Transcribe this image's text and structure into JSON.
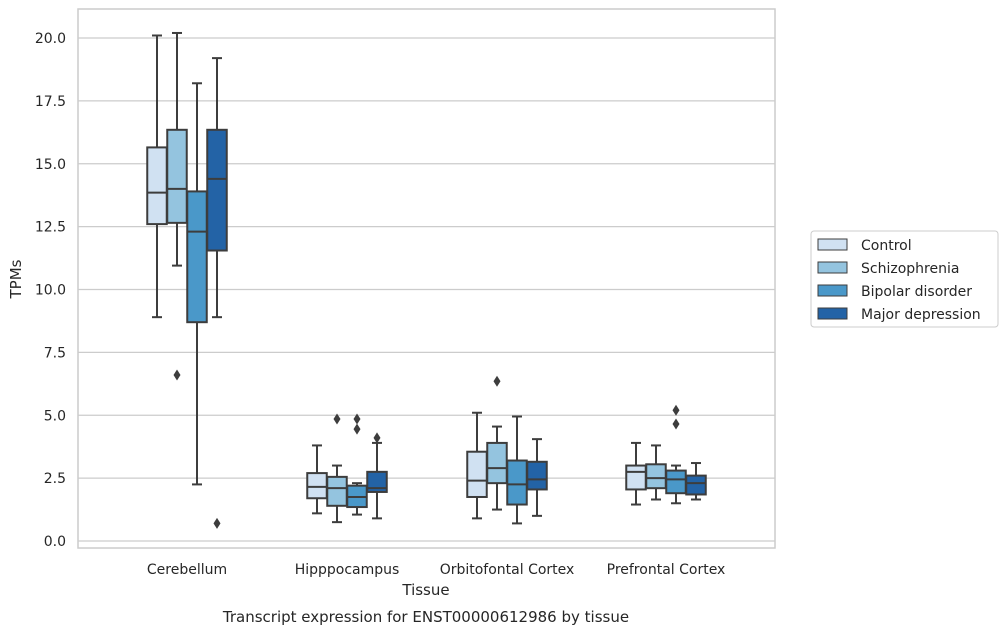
{
  "chart_data": {
    "type": "box",
    "title": "",
    "caption": "Transcript expression for ENST00000612986 by tissue",
    "xlabel": "Tissue",
    "ylabel": "TPMs",
    "ylim": [
      -0.3,
      21.2
    ],
    "yticks": [
      0.0,
      2.5,
      5.0,
      7.5,
      10.0,
      12.5,
      15.0,
      17.5,
      20.0
    ],
    "ytick_labels": [
      "0.0",
      "2.5",
      "5.0",
      "7.5",
      "10.0",
      "12.5",
      "15.0",
      "17.5",
      "20.0"
    ],
    "grid": "horizontal",
    "legend_position": "right",
    "categories": [
      "Cerebellum",
      "Hipppocampus",
      "Orbitofontal Cortex",
      "Prefrontal Cortex"
    ],
    "series": [
      {
        "name": "Control",
        "color": "#d0e1f2",
        "boxes": [
          {
            "whisker_low": 8.9,
            "q1": 12.6,
            "median": 13.85,
            "q3": 15.65,
            "whisker_high": 20.1,
            "outliers": []
          },
          {
            "whisker_low": 1.1,
            "q1": 1.7,
            "median": 2.15,
            "q3": 2.7,
            "whisker_high": 3.8,
            "outliers": []
          },
          {
            "whisker_low": 0.9,
            "q1": 1.75,
            "median": 2.4,
            "q3": 3.55,
            "whisker_high": 5.1,
            "outliers": []
          },
          {
            "whisker_low": 1.45,
            "q1": 2.05,
            "median": 2.75,
            "q3": 3.0,
            "whisker_high": 3.9,
            "outliers": []
          }
        ]
      },
      {
        "name": "Schizophrenia",
        "color": "#94c4df",
        "boxes": [
          {
            "whisker_low": 10.95,
            "q1": 12.65,
            "median": 14.0,
            "q3": 16.35,
            "whisker_high": 20.2,
            "outliers": [
              6.6
            ]
          },
          {
            "whisker_low": 0.75,
            "q1": 1.4,
            "median": 2.1,
            "q3": 2.55,
            "whisker_high": 3.0,
            "outliers": [
              4.85
            ]
          },
          {
            "whisker_low": 1.25,
            "q1": 2.3,
            "median": 2.9,
            "q3": 3.9,
            "whisker_high": 4.55,
            "outliers": [
              6.35
            ]
          },
          {
            "whisker_low": 1.65,
            "q1": 2.1,
            "median": 2.5,
            "q3": 3.05,
            "whisker_high": 3.8,
            "outliers": []
          }
        ]
      },
      {
        "name": "Bipolar disorder",
        "color": "#4a98c9",
        "boxes": [
          {
            "whisker_low": 2.25,
            "q1": 8.7,
            "median": 12.3,
            "q3": 13.9,
            "whisker_high": 18.2,
            "outliers": []
          },
          {
            "whisker_low": 1.05,
            "q1": 1.35,
            "median": 1.75,
            "q3": 2.2,
            "whisker_high": 2.3,
            "outliers": [
              4.45,
              4.85
            ]
          },
          {
            "whisker_low": 0.7,
            "q1": 1.45,
            "median": 2.25,
            "q3": 3.2,
            "whisker_high": 4.95,
            "outliers": []
          },
          {
            "whisker_low": 1.5,
            "q1": 1.9,
            "median": 2.45,
            "q3": 2.8,
            "whisker_high": 3.0,
            "outliers": [
              4.65,
              5.2
            ]
          }
        ]
      },
      {
        "name": "Major depression",
        "color": "#2363a6",
        "boxes": [
          {
            "whisker_low": 8.9,
            "q1": 11.55,
            "median": 14.4,
            "q3": 16.35,
            "whisker_high": 19.2,
            "outliers": [
              0.7
            ]
          },
          {
            "whisker_low": 0.9,
            "q1": 1.95,
            "median": 2.1,
            "q3": 2.75,
            "whisker_high": 3.9,
            "outliers": [
              4.1
            ]
          },
          {
            "whisker_low": 1.0,
            "q1": 2.05,
            "median": 2.45,
            "q3": 3.15,
            "whisker_high": 4.05,
            "outliers": []
          },
          {
            "whisker_low": 1.65,
            "q1": 1.85,
            "median": 2.3,
            "q3": 2.6,
            "whisker_high": 3.1,
            "outliers": []
          }
        ]
      }
    ]
  }
}
